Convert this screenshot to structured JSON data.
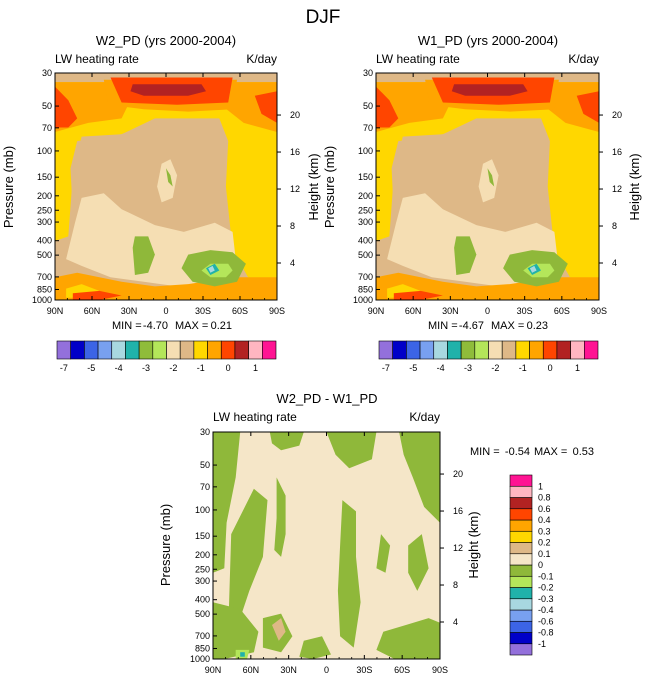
{
  "chart_data": {
    "title": "DJF",
    "type": "contour",
    "panels": [
      {
        "id": "w2",
        "title": "W2_PD (yrs 2000-2004)",
        "left_label": "LW heating rate",
        "right_label": "K/day",
        "ylabel": "Pressure (mb)",
        "ylabel_right": "Height (km)",
        "x_ticks": [
          "90N",
          "60N",
          "30N",
          "0",
          "30S",
          "60S",
          "90S"
        ],
        "y_ticks": [
          "30",
          "50",
          "70",
          "100",
          "150",
          "200",
          "250",
          "300",
          "400",
          "500",
          "700",
          "850",
          "1000"
        ],
        "height_ticks": [
          "20",
          "16",
          "12",
          "8",
          "4"
        ],
        "min_label": "MIN =",
        "min": "-4.70",
        "max_label": "MAX =",
        "max": "0.21"
      },
      {
        "id": "w1",
        "title": "W1_PD (yrs 2000-2004)",
        "left_label": "LW heating rate",
        "right_label": "K/day",
        "ylabel": "Pressure (mb)",
        "ylabel_right": "Height (km)",
        "x_ticks": [
          "90N",
          "60N",
          "30N",
          "0",
          "30S",
          "60S",
          "90S"
        ],
        "y_ticks": [
          "30",
          "50",
          "70",
          "100",
          "150",
          "200",
          "250",
          "300",
          "400",
          "500",
          "700",
          "850",
          "1000"
        ],
        "height_ticks": [
          "20",
          "16",
          "12",
          "8",
          "4"
        ],
        "min_label": "MIN =",
        "min": "-4.67",
        "max_label": "MAX =",
        "max": "0.23"
      },
      {
        "id": "diff",
        "title": "W2_PD - W1_PD",
        "left_label": "LW heating rate",
        "right_label": "K/day",
        "ylabel": "Pressure (mb)",
        "ylabel_right": "Height (km)",
        "x_ticks": [
          "90N",
          "60N",
          "30N",
          "0",
          "30S",
          "60S",
          "90S"
        ],
        "y_ticks": [
          "30",
          "50",
          "70",
          "100",
          "150",
          "200",
          "250",
          "300",
          "400",
          "500",
          "700",
          "850",
          "1000"
        ],
        "height_ticks": [
          "20",
          "16",
          "12",
          "8",
          "4"
        ],
        "min_label": "MIN =",
        "min": "-0.54",
        "max_label": "MAX =",
        "max": "0.53"
      }
    ],
    "colorbar_top": {
      "colors": [
        "#9370db",
        "#0000c8",
        "#3c64e6",
        "#78a0f0",
        "#a8d8e0",
        "#20b2aa",
        "#8fbc3a",
        "#b4e65a",
        "#f5deb3",
        "#deb887",
        "#ffd700",
        "#ffa500",
        "#ff4500",
        "#b22222",
        "#ffb6c1",
        "#ff1493"
      ],
      "labels": [
        "-7",
        "-5",
        "-4",
        "-3",
        "-2",
        "-1",
        "0",
        "1"
      ]
    },
    "colorbar_diff": {
      "colors": [
        "#9370db",
        "#0000c8",
        "#3c64e6",
        "#78a0f0",
        "#a8d8e0",
        "#20b2aa",
        "#b4e65a",
        "#8fb83a",
        "#f5e6c8",
        "#deb887",
        "#ffd700",
        "#ffa500",
        "#ff4500",
        "#b22222",
        "#ffb6c1",
        "#ff1493"
      ],
      "labels": [
        "-1",
        "-0.8",
        "-0.6",
        "-0.4",
        "-0.3",
        "-0.2",
        "-0.1",
        "0",
        "0.1",
        "0.2",
        "0.3",
        "0.4",
        "0.6",
        "0.8",
        "1"
      ]
    },
    "field_colors": {
      "bg_tan": "#deb887",
      "light_tan": "#f5deb3",
      "diff_bg": "#f5e6c8",
      "yellow": "#ffd700",
      "orange": "#ffa500",
      "red_orange": "#ff4500",
      "dark_red": "#b22222",
      "green": "#8fb83a",
      "light_green": "#b4e65a",
      "teal": "#20b2aa",
      "light_blue": "#a8d8e0",
      "pink": "#ffb6c1"
    }
  }
}
